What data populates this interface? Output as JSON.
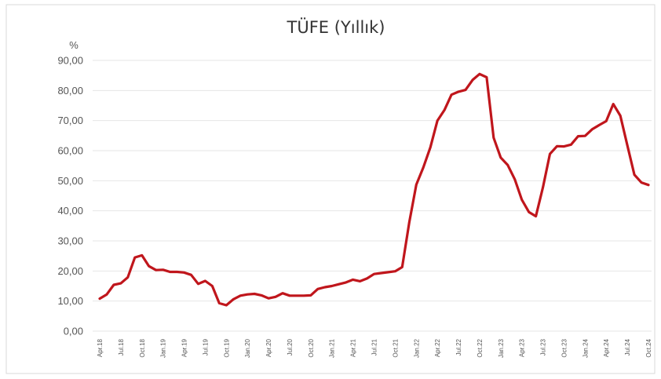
{
  "chart_data": {
    "type": "line",
    "title": "TÜFE (Yıllık)",
    "ylabel": "%",
    "xlabel": "",
    "ylim": [
      0,
      90
    ],
    "yticks": [
      "0,00",
      "10,00",
      "20,00",
      "30,00",
      "40,00",
      "50,00",
      "60,00",
      "70,00",
      "80,00",
      "90,00"
    ],
    "xtick_labels": [
      "Apr.18",
      "Jul.18",
      "Oct.18",
      "Jan.19",
      "Apr.19",
      "Jul.19",
      "Oct.19",
      "Jan.20",
      "Apr.20",
      "Jul.20",
      "Oct.20",
      "Jan.21",
      "Apr.21",
      "Jul.21",
      "Oct.21",
      "Jan.22",
      "Apr.22",
      "Jul.22",
      "Oct.22",
      "Jan.23",
      "Apr.23",
      "Jul.23",
      "Oct.23",
      "Jan.24",
      "Apr.24",
      "Jul.24",
      "Oct.24"
    ],
    "grid": true,
    "legend": "none",
    "colors": {
      "line": "#c0161c",
      "grid": "#e6e6e6",
      "text": "#555555"
    },
    "series": [
      {
        "x": [
          "2018-04",
          "2018-05",
          "2018-06",
          "2018-07",
          "2018-08",
          "2018-09",
          "2018-10",
          "2018-11",
          "2018-12",
          "2019-01",
          "2019-02",
          "2019-03",
          "2019-04",
          "2019-05",
          "2019-06",
          "2019-07",
          "2019-08",
          "2019-09",
          "2019-10",
          "2019-11",
          "2019-12",
          "2020-01",
          "2020-02",
          "2020-03",
          "2020-04",
          "2020-05",
          "2020-06",
          "2020-07",
          "2020-08",
          "2020-09",
          "2020-10",
          "2020-11",
          "2020-12",
          "2021-01",
          "2021-02",
          "2021-03",
          "2021-04",
          "2021-05",
          "2021-06",
          "2021-07",
          "2021-08",
          "2021-09",
          "2021-10",
          "2021-11",
          "2021-12",
          "2022-01",
          "2022-02",
          "2022-03",
          "2022-04",
          "2022-05",
          "2022-06",
          "2022-07",
          "2022-08",
          "2022-09",
          "2022-10",
          "2022-11",
          "2022-12",
          "2023-01",
          "2023-02",
          "2023-03",
          "2023-04",
          "2023-05",
          "2023-06",
          "2023-07",
          "2023-08",
          "2023-09",
          "2023-10",
          "2023-11",
          "2023-12",
          "2024-01",
          "2024-02",
          "2024-03",
          "2024-04",
          "2024-05",
          "2024-06",
          "2024-07",
          "2024-08",
          "2024-09",
          "2024-10"
        ],
        "values": [
          10.8,
          12.2,
          15.4,
          15.9,
          17.9,
          24.5,
          25.2,
          21.6,
          20.3,
          20.4,
          19.7,
          19.7,
          19.5,
          18.7,
          15.7,
          16.7,
          15.0,
          9.3,
          8.6,
          10.6,
          11.8,
          12.2,
          12.4,
          11.9,
          10.9,
          11.4,
          12.6,
          11.8,
          11.8,
          11.8,
          11.9,
          14.0,
          14.6,
          15.0,
          15.6,
          16.2,
          17.1,
          16.6,
          17.5,
          19.0,
          19.3,
          19.6,
          19.9,
          21.3,
          36.1,
          48.7,
          54.4,
          61.1,
          70.0,
          73.5,
          78.6,
          79.6,
          80.2,
          83.5,
          85.5,
          84.4,
          64.3,
          57.7,
          55.2,
          50.5,
          43.7,
          39.6,
          38.2,
          47.8,
          58.9,
          61.5,
          61.4,
          62.0,
          64.8,
          64.9,
          67.1,
          68.5,
          69.8,
          75.5,
          71.6,
          61.8,
          52.0,
          49.4,
          48.6
        ]
      }
    ]
  }
}
